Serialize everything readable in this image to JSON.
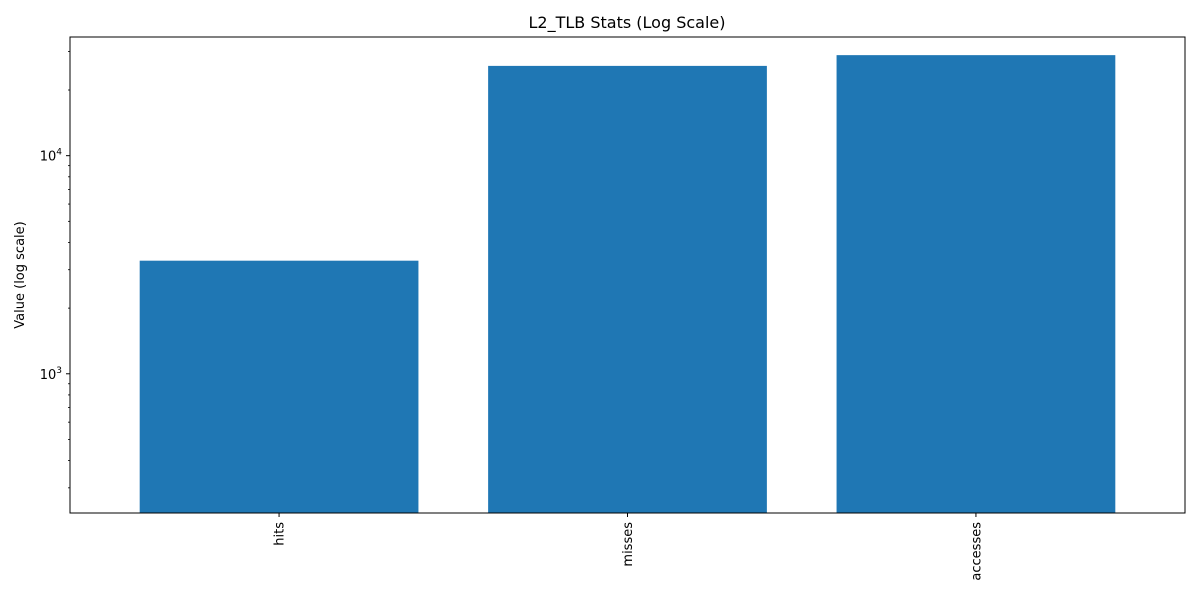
{
  "chart_data": {
    "type": "bar",
    "title": "L2_TLB Stats (Log Scale)",
    "xlabel": "",
    "ylabel": "Value (log scale)",
    "yscale": "log",
    "ylim": [
      230,
      35000
    ],
    "categories": [
      "hits",
      "misses",
      "accesses"
    ],
    "values": [
      3300,
      25800,
      28900
    ],
    "major_ticks": [
      {
        "value": 1000,
        "base": "10",
        "exp": "3"
      },
      {
        "value": 10000,
        "base": "10",
        "exp": "4"
      }
    ],
    "minor_ticks": [
      300,
      400,
      500,
      600,
      700,
      800,
      900,
      2000,
      3000,
      4000,
      5000,
      6000,
      7000,
      8000,
      9000,
      20000,
      30000
    ],
    "bar_color": "#1f77b4",
    "grid": false,
    "legend": "none"
  }
}
